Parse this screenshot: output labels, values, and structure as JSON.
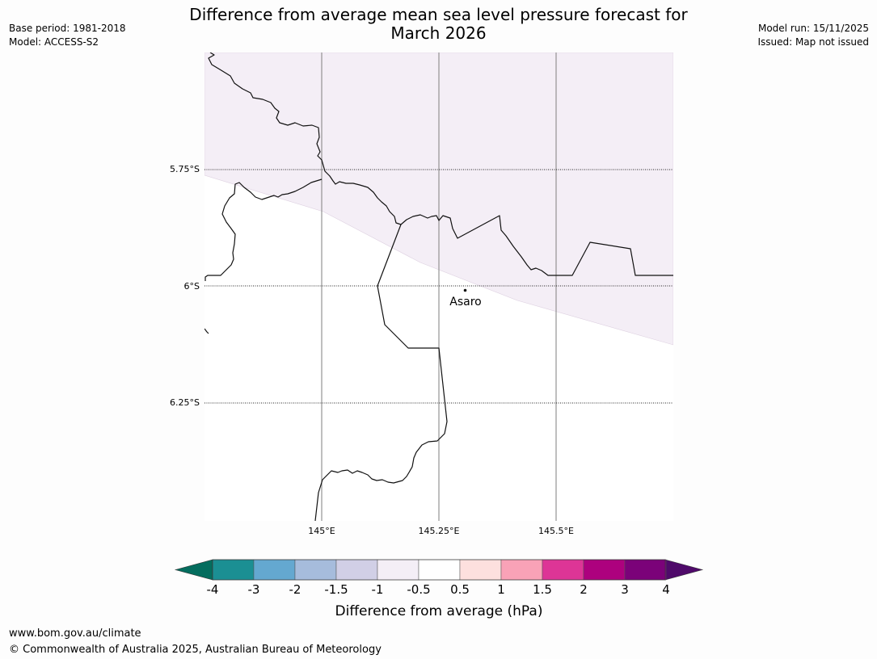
{
  "title": {
    "line1": "Difference from average mean sea level pressure forecast for",
    "line2": "March 2026"
  },
  "meta": {
    "base_period": "Base period: 1981-2018",
    "model": "Model: ACCESS-S2",
    "model_run": "Model run: 15/11/2025",
    "issued": "Issued: Map not issued"
  },
  "map": {
    "lat_labels": [
      "5.75°S",
      "6°S",
      "6.25°S"
    ],
    "lon_labels": [
      "145°E",
      "145.25°E",
      "145.5°E"
    ],
    "place": "Asaro",
    "shading_color": "#f4eef6"
  },
  "colorbar": {
    "label": "Difference from average (hPa)",
    "ticks": [
      "-4",
      "-3",
      "-2",
      "-1.5",
      "-1",
      "-0.5",
      "0.5",
      "1",
      "1.5",
      "2",
      "3",
      "4"
    ],
    "low_extend_color": "#046d5e",
    "high_extend_color": "#4f0a6a",
    "colors": [
      "#1b8f93",
      "#64a8d0",
      "#a6bcdc",
      "#d1cfe6",
      "#f4eef6",
      "#ffffff",
      "#fde0de",
      "#f9a2b7",
      "#dd3596",
      "#ad017e",
      "#7b0279"
    ]
  },
  "footer": {
    "url": "www.bom.gov.au/climate",
    "copyright": "© Commonwealth of Australia 2025, Australian Bureau of Meteorology"
  }
}
